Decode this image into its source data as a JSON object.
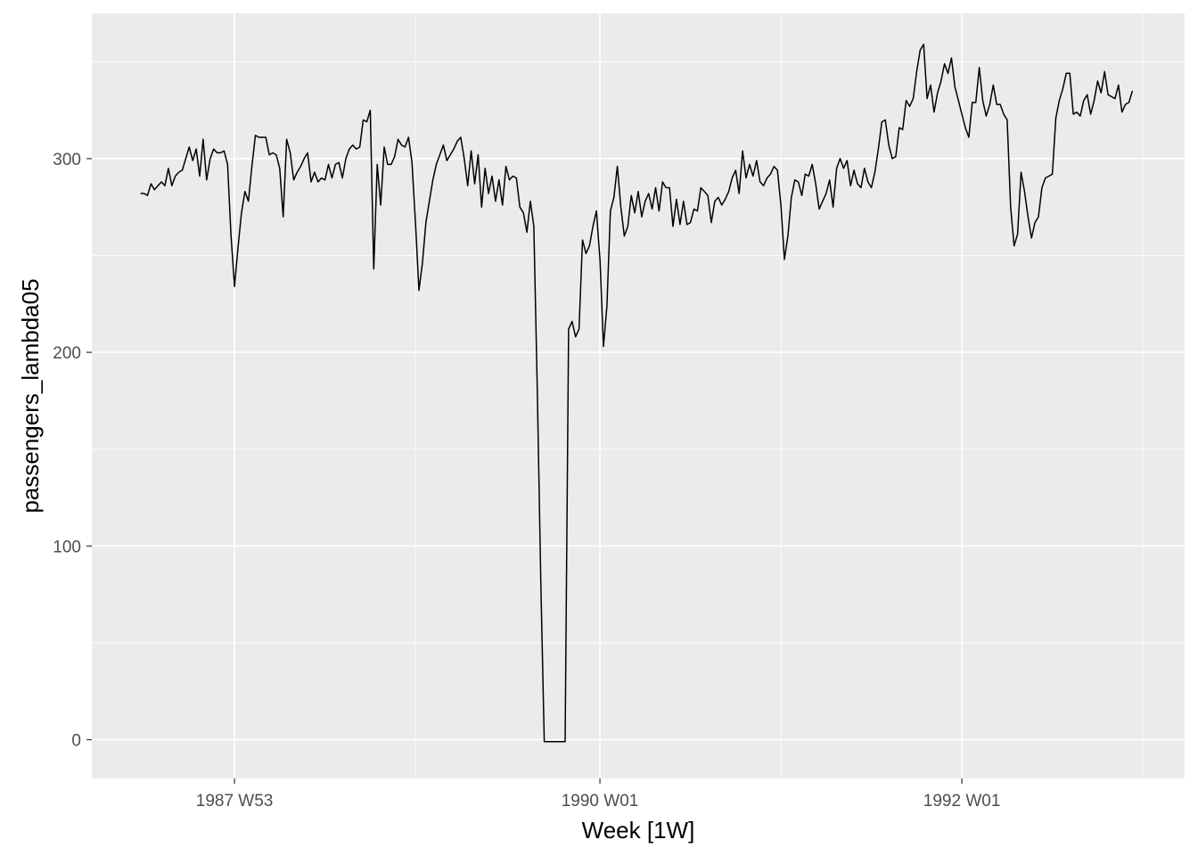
{
  "chart_data": {
    "type": "line",
    "title": "",
    "xlabel": "Week [1W]",
    "ylabel": "passengers_lambda05",
    "x_ticks": [
      {
        "week_index": 0,
        "label": "1987 W53"
      },
      {
        "week_index": 105,
        "label": "1990 W01"
      },
      {
        "week_index": 209,
        "label": "1992 W01"
      }
    ],
    "x_minor_ticks": [
      52,
      157,
      261
    ],
    "xlim": [
      -41,
      273
    ],
    "y_ticks": [
      0,
      100,
      200,
      300
    ],
    "y_minor_ticks": [
      50,
      150,
      250,
      350
    ],
    "ylim": [
      -20,
      375
    ],
    "grid": true,
    "legend": "none",
    "colors": {
      "panel": "#ebebeb",
      "grid": "#ffffff",
      "line": "#000000"
    },
    "x_note": "week_index = weeks since 1987 W53",
    "series": [
      {
        "values": [
          [
            -27,
            282
          ],
          [
            -26,
            282
          ],
          [
            -25,
            281
          ],
          [
            -24,
            287
          ],
          [
            -23,
            284
          ],
          [
            -22,
            286
          ],
          [
            -21,
            288
          ],
          [
            -20,
            286
          ],
          [
            -19,
            295
          ],
          [
            -18,
            286
          ],
          [
            -17,
            291
          ],
          [
            -16,
            293
          ],
          [
            -15,
            294
          ],
          [
            -14,
            300
          ],
          [
            -13,
            306
          ],
          [
            -12,
            299
          ],
          [
            -11,
            305
          ],
          [
            -10,
            291
          ],
          [
            -9,
            310
          ],
          [
            -8,
            289
          ],
          [
            -7,
            300
          ],
          [
            -6,
            305
          ],
          [
            -5,
            303
          ],
          [
            -4,
            303
          ],
          [
            -3,
            304
          ],
          [
            -2,
            297
          ],
          [
            -1,
            260
          ],
          [
            0,
            234
          ],
          [
            1,
            254
          ],
          [
            2,
            272
          ],
          [
            3,
            283
          ],
          [
            4,
            278
          ],
          [
            5,
            296
          ],
          [
            6,
            312
          ],
          [
            7,
            311
          ],
          [
            8,
            311
          ],
          [
            9,
            311
          ],
          [
            10,
            302
          ],
          [
            11,
            303
          ],
          [
            12,
            302
          ],
          [
            13,
            295
          ],
          [
            14,
            270
          ],
          [
            15,
            310
          ],
          [
            16,
            303
          ],
          [
            17,
            289
          ],
          [
            18,
            293
          ],
          [
            19,
            296
          ],
          [
            20,
            300
          ],
          [
            21,
            303
          ],
          [
            22,
            288
          ],
          [
            23,
            293
          ],
          [
            24,
            288
          ],
          [
            25,
            290
          ],
          [
            26,
            289
          ],
          [
            27,
            297
          ],
          [
            28,
            290
          ],
          [
            29,
            297
          ],
          [
            30,
            298
          ],
          [
            31,
            290
          ],
          [
            32,
            300
          ],
          [
            33,
            305
          ],
          [
            34,
            307
          ],
          [
            35,
            305
          ],
          [
            36,
            306
          ],
          [
            37,
            320
          ],
          [
            38,
            319
          ],
          [
            39,
            325
          ],
          [
            40,
            243
          ],
          [
            41,
            297
          ],
          [
            42,
            276
          ],
          [
            43,
            306
          ],
          [
            44,
            297
          ],
          [
            45,
            297
          ],
          [
            46,
            301
          ],
          [
            47,
            310
          ],
          [
            48,
            307
          ],
          [
            49,
            306
          ],
          [
            50,
            311
          ],
          [
            51,
            298
          ],
          [
            52,
            267
          ],
          [
            53,
            232
          ],
          [
            54,
            246
          ],
          [
            55,
            267
          ],
          [
            56,
            278
          ],
          [
            57,
            289
          ],
          [
            58,
            297
          ],
          [
            59,
            302
          ],
          [
            60,
            307
          ],
          [
            61,
            299
          ],
          [
            62,
            302
          ],
          [
            63,
            305
          ],
          [
            64,
            309
          ],
          [
            65,
            311
          ],
          [
            66,
            300
          ],
          [
            67,
            286
          ],
          [
            68,
            304
          ],
          [
            69,
            287
          ],
          [
            70,
            302
          ],
          [
            71,
            275
          ],
          [
            72,
            295
          ],
          [
            73,
            282
          ],
          [
            74,
            291
          ],
          [
            75,
            278
          ],
          [
            76,
            289
          ],
          [
            77,
            276
          ],
          [
            78,
            296
          ],
          [
            79,
            289
          ],
          [
            80,
            291
          ],
          [
            81,
            290
          ],
          [
            82,
            275
          ],
          [
            83,
            272
          ],
          [
            84,
            262
          ],
          [
            85,
            278
          ],
          [
            86,
            265
          ],
          [
            87,
            180
          ],
          [
            88,
            82
          ],
          [
            89,
            -1
          ],
          [
            90,
            -1
          ],
          [
            91,
            -1
          ],
          [
            92,
            -1
          ],
          [
            93,
            -1
          ],
          [
            94,
            -1
          ],
          [
            95,
            -1
          ],
          [
            96,
            212
          ],
          [
            97,
            216
          ],
          [
            98,
            208
          ],
          [
            99,
            212
          ],
          [
            100,
            258
          ],
          [
            101,
            251
          ],
          [
            102,
            255
          ],
          [
            103,
            265
          ],
          [
            104,
            273
          ],
          [
            105,
            248
          ],
          [
            106,
            203
          ],
          [
            107,
            224
          ],
          [
            108,
            273
          ],
          [
            109,
            280
          ],
          [
            110,
            296
          ],
          [
            111,
            275
          ],
          [
            112,
            260
          ],
          [
            113,
            265
          ],
          [
            114,
            281
          ],
          [
            115,
            272
          ],
          [
            116,
            283
          ],
          [
            117,
            270
          ],
          [
            118,
            278
          ],
          [
            119,
            282
          ],
          [
            120,
            274
          ],
          [
            121,
            285
          ],
          [
            122,
            273
          ],
          [
            123,
            288
          ],
          [
            124,
            285
          ],
          [
            125,
            285
          ],
          [
            126,
            265
          ],
          [
            127,
            279
          ],
          [
            128,
            266
          ],
          [
            129,
            278
          ],
          [
            130,
            266
          ],
          [
            131,
            267
          ],
          [
            132,
            274
          ],
          [
            133,
            273
          ],
          [
            134,
            285
          ],
          [
            135,
            283
          ],
          [
            136,
            281
          ],
          [
            137,
            267
          ],
          [
            138,
            278
          ],
          [
            139,
            280
          ],
          [
            140,
            276
          ],
          [
            141,
            279
          ],
          [
            142,
            283
          ],
          [
            143,
            290
          ],
          [
            144,
            294
          ],
          [
            145,
            282
          ],
          [
            146,
            304
          ],
          [
            147,
            290
          ],
          [
            148,
            297
          ],
          [
            149,
            291
          ],
          [
            150,
            299
          ],
          [
            151,
            288
          ],
          [
            152,
            286
          ],
          [
            153,
            290
          ],
          [
            154,
            292
          ],
          [
            155,
            296
          ],
          [
            156,
            294
          ],
          [
            157,
            276
          ],
          [
            158,
            248
          ],
          [
            159,
            260
          ],
          [
            160,
            280
          ],
          [
            161,
            289
          ],
          [
            162,
            288
          ],
          [
            163,
            281
          ],
          [
            164,
            292
          ],
          [
            165,
            291
          ],
          [
            166,
            297
          ],
          [
            167,
            287
          ],
          [
            168,
            274
          ],
          [
            169,
            278
          ],
          [
            170,
            282
          ],
          [
            171,
            289
          ],
          [
            172,
            275
          ],
          [
            173,
            295
          ],
          [
            174,
            300
          ],
          [
            175,
            295
          ],
          [
            176,
            299
          ],
          [
            177,
            286
          ],
          [
            178,
            294
          ],
          [
            179,
            287
          ],
          [
            180,
            285
          ],
          [
            181,
            295
          ],
          [
            182,
            288
          ],
          [
            183,
            285
          ],
          [
            184,
            293
          ],
          [
            185,
            305
          ],
          [
            186,
            319
          ],
          [
            187,
            320
          ],
          [
            188,
            307
          ],
          [
            189,
            300
          ],
          [
            190,
            301
          ],
          [
            191,
            316
          ],
          [
            192,
            315
          ],
          [
            193,
            330
          ],
          [
            194,
            327
          ],
          [
            195,
            331
          ],
          [
            196,
            345
          ],
          [
            197,
            356
          ],
          [
            198,
            359
          ],
          [
            199,
            331
          ],
          [
            200,
            338
          ],
          [
            201,
            324
          ],
          [
            202,
            334
          ],
          [
            203,
            340
          ],
          [
            204,
            349
          ],
          [
            205,
            344
          ],
          [
            206,
            352
          ],
          [
            207,
            337
          ],
          [
            208,
            330
          ],
          [
            209,
            323
          ],
          [
            210,
            316
          ],
          [
            211,
            311
          ],
          [
            212,
            329
          ],
          [
            213,
            329
          ],
          [
            214,
            347
          ],
          [
            215,
            330
          ],
          [
            216,
            322
          ],
          [
            217,
            328
          ],
          [
            218,
            338
          ],
          [
            219,
            328
          ],
          [
            220,
            328
          ],
          [
            221,
            323
          ],
          [
            222,
            320
          ],
          [
            223,
            275
          ],
          [
            224,
            255
          ],
          [
            225,
            261
          ],
          [
            226,
            293
          ],
          [
            227,
            283
          ],
          [
            228,
            270
          ],
          [
            229,
            259
          ],
          [
            230,
            267
          ],
          [
            231,
            270
          ],
          [
            232,
            285
          ],
          [
            233,
            290
          ],
          [
            234,
            291
          ],
          [
            235,
            292
          ],
          [
            236,
            321
          ],
          [
            237,
            330
          ],
          [
            238,
            336
          ],
          [
            239,
            344
          ],
          [
            240,
            344
          ],
          [
            241,
            323
          ],
          [
            242,
            324
          ],
          [
            243,
            322
          ],
          [
            244,
            330
          ],
          [
            245,
            333
          ],
          [
            246,
            323
          ],
          [
            247,
            330
          ],
          [
            248,
            340
          ],
          [
            249,
            334
          ],
          [
            250,
            345
          ],
          [
            251,
            333
          ],
          [
            252,
            332
          ],
          [
            253,
            331
          ],
          [
            254,
            338
          ],
          [
            255,
            324
          ],
          [
            256,
            328
          ],
          [
            257,
            329
          ],
          [
            258,
            335
          ]
        ]
      }
    ]
  }
}
